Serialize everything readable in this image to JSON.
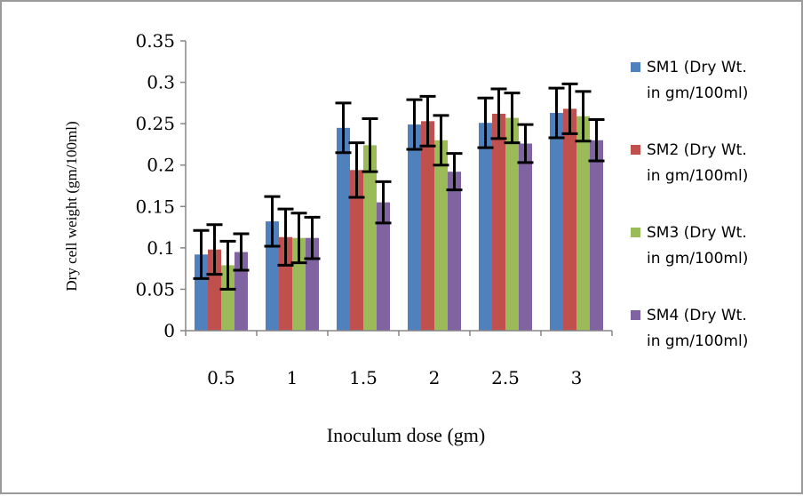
{
  "chart_data": {
    "type": "bar",
    "xlabel": "Inoculum dose (gm)",
    "ylabel": "Dry cell weight (gm/100ml)",
    "categories": [
      "0.5",
      "1",
      "1.5",
      "2",
      "2.5",
      "3"
    ],
    "ylim": [
      0,
      0.35
    ],
    "yticks": [
      "0",
      "0.05",
      "0.1",
      "0.15",
      "0.2",
      "0.25",
      "0.3",
      "0.35"
    ],
    "legend_position": "right",
    "grid": false,
    "series": [
      {
        "name_line1": "SM1 (Dry Wt.",
        "name_line2": "in gm/100ml)",
        "color": "#4f81bd",
        "values": [
          0.092,
          0.132,
          0.245,
          0.249,
          0.251,
          0.263
        ],
        "errors": [
          0.029,
          0.03,
          0.03,
          0.03,
          0.03,
          0.03
        ]
      },
      {
        "name_line1": "SM2 (Dry Wt.",
        "name_line2": "in gm/100ml)",
        "color": "#c0504d",
        "values": [
          0.098,
          0.113,
          0.194,
          0.253,
          0.262,
          0.268
        ],
        "errors": [
          0.03,
          0.034,
          0.033,
          0.03,
          0.03,
          0.03
        ]
      },
      {
        "name_line1": "SM3 (Dry Wt.",
        "name_line2": "in gm/100ml)",
        "color": "#9bbb59",
        "values": [
          0.079,
          0.112,
          0.224,
          0.23,
          0.257,
          0.259
        ],
        "errors": [
          0.029,
          0.03,
          0.032,
          0.03,
          0.03,
          0.03
        ]
      },
      {
        "name_line1": "SM4 (Dry Wt.",
        "name_line2": "in gm/100ml)",
        "color": "#8064a2",
        "values": [
          0.095,
          0.112,
          0.155,
          0.192,
          0.226,
          0.23
        ],
        "errors": [
          0.022,
          0.025,
          0.025,
          0.022,
          0.023,
          0.025
        ]
      }
    ]
  }
}
